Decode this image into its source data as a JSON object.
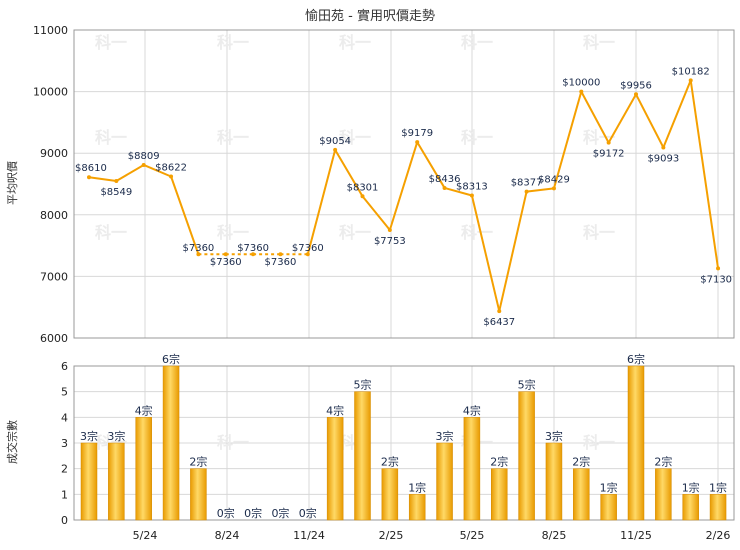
{
  "chart_data": [
    {
      "type": "line",
      "title": "愉田苑 - 實用呎價走勢",
      "ylabel": "平均呎價",
      "ylim": [
        6000,
        11000
      ],
      "yticks": [
        6000,
        7000,
        8000,
        9000,
        10000,
        11000
      ],
      "x_tick_labels": [
        "5/24",
        "8/24",
        "11/24",
        "2/25",
        "5/25",
        "8/25",
        "11/25",
        "2/26"
      ],
      "values": [
        8610,
        8549,
        8809,
        8622,
        7360,
        7360,
        7360,
        7360,
        7360,
        9054,
        8301,
        7753,
        9179,
        8436,
        8313,
        6437,
        8377,
        8429,
        10000,
        9172,
        9956,
        9093,
        10182,
        7130
      ],
      "labels": [
        "$8610",
        "$8549",
        "$8809",
        "$8622",
        "$7360",
        "$7360",
        "$7360",
        "$7360",
        "$7360",
        "$9054",
        "$8301",
        "$7753",
        "$9179",
        "$8436",
        "$8313",
        "$6437",
        "$8377",
        "$8429",
        "$10000",
        "$9172",
        "$9956",
        "$9093",
        "$10182",
        "$7130"
      ],
      "dashed_segments": [
        [
          4,
          8
        ]
      ],
      "color": "#f5a000",
      "watermark": "科一",
      "grid": true
    },
    {
      "type": "bar",
      "ylabel": "成交宗數",
      "ylim": [
        0,
        6
      ],
      "yticks": [
        0,
        1,
        2,
        3,
        4,
        5,
        6
      ],
      "values": [
        3,
        3,
        4,
        6,
        2,
        0,
        0,
        0,
        0,
        4,
        5,
        2,
        1,
        3,
        4,
        2,
        5,
        3,
        2,
        1,
        6,
        2,
        1,
        1
      ],
      "labels": [
        "3宗",
        "3宗",
        "4宗",
        "6宗",
        "2宗",
        "0宗",
        "0宗",
        "0宗",
        "0宗",
        "4宗",
        "5宗",
        "2宗",
        "1宗",
        "3宗",
        "4宗",
        "2宗",
        "5宗",
        "3宗",
        "2宗",
        "1宗",
        "6宗",
        "2宗",
        "1宗",
        "1宗"
      ],
      "x_tick_labels": [
        "5/24",
        "8/24",
        "11/24",
        "2/25",
        "5/25",
        "8/25",
        "11/25",
        "2/26"
      ],
      "color": "#f5b000",
      "grid": true
    }
  ]
}
